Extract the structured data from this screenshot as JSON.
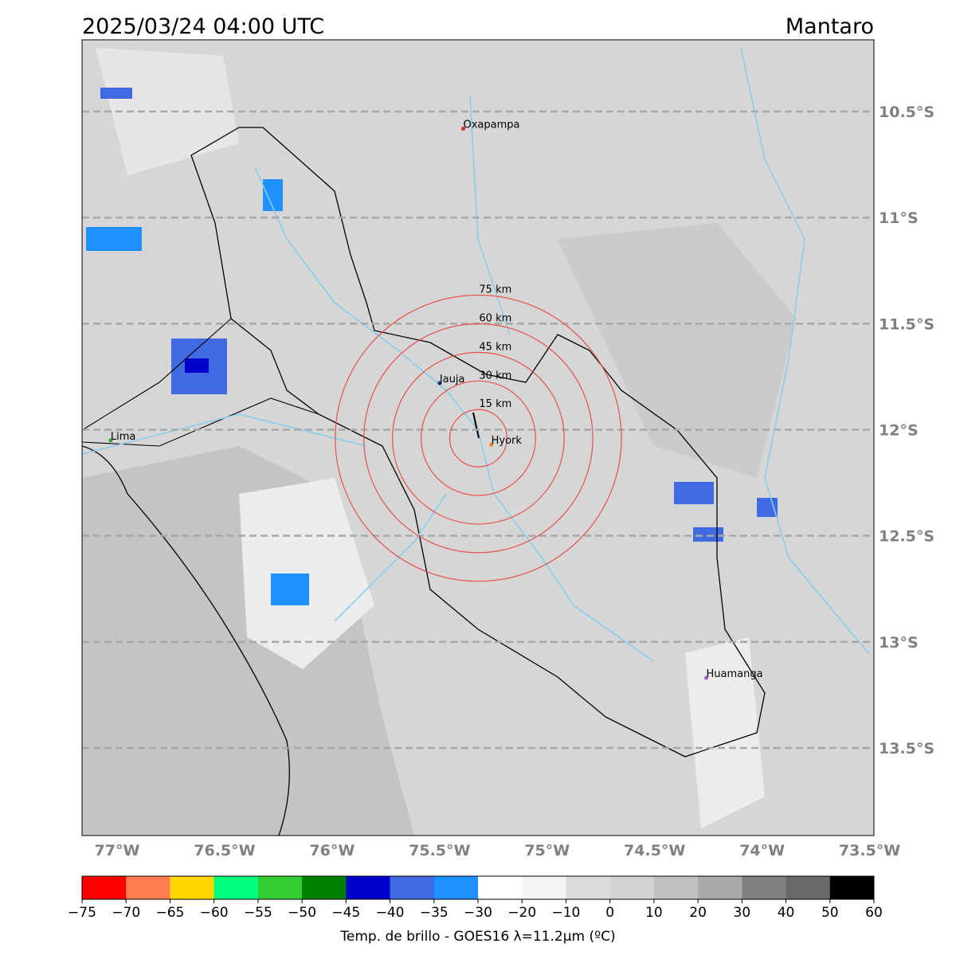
{
  "header": {
    "time": "2025/03/24 04:00 UTC",
    "region": "Mantaro"
  },
  "map": {
    "xlim": [
      -77.163,
      -73.48
    ],
    "ylim": [
      -13.913,
      -10.162
    ],
    "yticks": [
      {
        "value": -10.5,
        "label": "10.5°S"
      },
      {
        "value": -11,
        "label": "11°S"
      },
      {
        "value": -11.5,
        "label": "11.5°S"
      },
      {
        "value": -12,
        "label": "12°S"
      },
      {
        "value": -12.5,
        "label": "12.5°S"
      },
      {
        "value": -13,
        "label": "13°S"
      },
      {
        "value": -13.5,
        "label": "13.5°S"
      }
    ],
    "xticks": [
      {
        "value": -77,
        "label": "77°W"
      },
      {
        "value": -76.5,
        "label": "76.5°W"
      },
      {
        "value": -76,
        "label": "76°W"
      },
      {
        "value": -75.5,
        "label": "75.5°W"
      },
      {
        "value": -75,
        "label": "75°W"
      },
      {
        "value": -74.5,
        "label": "74.5°W"
      },
      {
        "value": -74,
        "label": "74°W"
      },
      {
        "value": -73.5,
        "label": "73.5°W"
      }
    ],
    "grid": true,
    "cities": [
      {
        "name": "Oxapampa",
        "lon": -75.39,
        "lat": -10.58,
        "color": "#d62728"
      },
      {
        "name": "Jauja",
        "lon": -75.5,
        "lat": -11.78,
        "color": "#1f3f7f"
      },
      {
        "name": "Hyork",
        "lon": -75.26,
        "lat": -12.07,
        "color": "#ff7f0e"
      },
      {
        "name": "Lima",
        "lon": -77.03,
        "lat": -12.05,
        "color": "#2ca02c"
      },
      {
        "name": "Huamanga",
        "lon": -74.26,
        "lat": -13.17,
        "color": "#9467bd"
      }
    ],
    "rings": {
      "center_lon": -75.32,
      "center_lat": -12.04,
      "color": "#e8504f",
      "radii": [
        {
          "value": 15,
          "label": "15 km"
        },
        {
          "value": 30,
          "label": "30 km"
        },
        {
          "value": 45,
          "label": "45 km"
        },
        {
          "value": 60,
          "label": "60 km"
        },
        {
          "value": 75,
          "label": "75 km"
        }
      ]
    }
  },
  "colorbar": {
    "label": "Temp. de brillo - GOES16 λ=11.2μm (ºC)",
    "bins": [
      {
        "value": -75,
        "label": "−75"
      },
      {
        "value": -70,
        "label": "−70"
      },
      {
        "value": -65,
        "label": "−65"
      },
      {
        "value": -60,
        "label": "−60"
      },
      {
        "value": -55,
        "label": "−55"
      },
      {
        "value": -50,
        "label": "−50"
      },
      {
        "value": -45,
        "label": "−45"
      },
      {
        "value": -40,
        "label": "−40"
      },
      {
        "value": -35,
        "label": "−35"
      },
      {
        "value": -30,
        "label": "−30"
      },
      {
        "value": -20,
        "label": "−20"
      },
      {
        "value": -10,
        "label": "−10"
      },
      0,
      10,
      20,
      30,
      40,
      50,
      60
    ],
    "colors": [
      "#ff0000",
      "#ff7f50",
      "#ffd700",
      "#00ff7f",
      "#32cd32",
      "#008000",
      "#0000cd",
      "#4169e1",
      "#1e90ff",
      "#ffffff",
      "#f5f5f5",
      "#dcdcdc",
      "#d3d3d3",
      "#c0c0c0",
      "#a9a9a9",
      "#808080",
      "#696969",
      "#000000"
    ]
  }
}
